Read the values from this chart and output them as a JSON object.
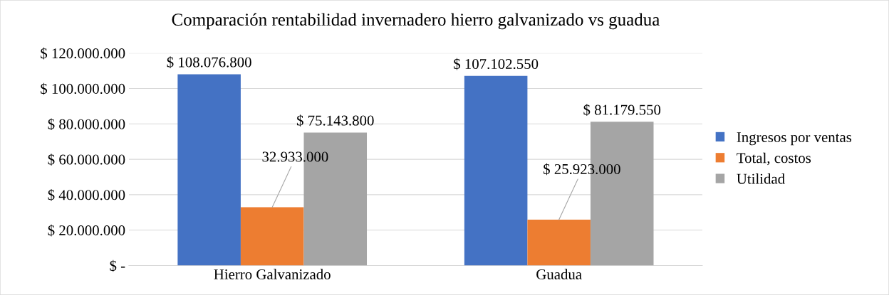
{
  "chart_data": {
    "type": "bar",
    "title": "Comparación rentabilidad invernadero hierro galvanizado vs guadua",
    "categories": [
      "Hierro Galvanizado",
      "Guadua"
    ],
    "series": [
      {
        "name": "Ingresos por ventas",
        "color": "#4472c4",
        "values": [
          108076800,
          107102550
        ],
        "value_labels": [
          "$ 108.076.800",
          "$ 107.102.550"
        ]
      },
      {
        "name": "Total, costos",
        "color": "#ed7d31",
        "values": [
          32933000,
          25923000
        ],
        "value_labels": [
          "32.933.000",
          "$ 25.923.000"
        ]
      },
      {
        "name": "Utilidad",
        "color": "#a5a5a5",
        "values": [
          75143800,
          81179550
        ],
        "value_labels": [
          "$ 75.143.800",
          "$ 81.179.550"
        ]
      }
    ],
    "ylim": [
      0,
      120000000
    ],
    "yticks": [
      {
        "value": 0,
        "label": "$ -"
      },
      {
        "value": 20000000,
        "label": "$ 20.000.000"
      },
      {
        "value": 40000000,
        "label": "$ 40.000.000"
      },
      {
        "value": 60000000,
        "label": "$ 60.000.000"
      },
      {
        "value": 80000000,
        "label": "$ 80.000.000"
      },
      {
        "value": 100000000,
        "label": "$ 100.000.000"
      },
      {
        "value": 120000000,
        "label": "$ 120.000.000"
      }
    ],
    "grid": "y",
    "legend": "right"
  }
}
